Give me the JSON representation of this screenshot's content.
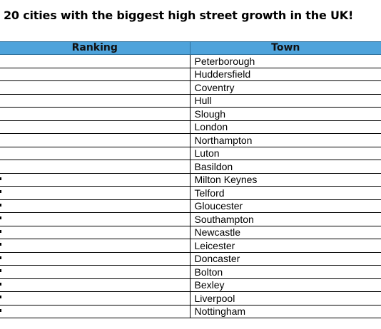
{
  "title": "20 cities with the biggest high street growth in the UK!",
  "table": {
    "headers": {
      "ranking": "Ranking",
      "town": "Town"
    },
    "rows": [
      {
        "town": "Peterborough"
      },
      {
        "town": "Huddersfield"
      },
      {
        "town": "Coventry"
      },
      {
        "town": "Hull"
      },
      {
        "town": "Slough"
      },
      {
        "town": "London"
      },
      {
        "town": "Northampton"
      },
      {
        "town": "Luton"
      },
      {
        "town": "Basildon"
      },
      {
        "town": "Milton Keynes"
      },
      {
        "town": "Telford"
      },
      {
        "town": "Gloucester"
      },
      {
        "town": "Southampton"
      },
      {
        "town": "Newcastle"
      },
      {
        "town": "Leicester"
      },
      {
        "town": "Doncaster"
      },
      {
        "town": "Bolton"
      },
      {
        "town": "Bexley"
      },
      {
        "town": "Liverpool"
      },
      {
        "town": "Nottingham"
      }
    ]
  },
  "colors": {
    "header_bg": "#4ea3db"
  }
}
